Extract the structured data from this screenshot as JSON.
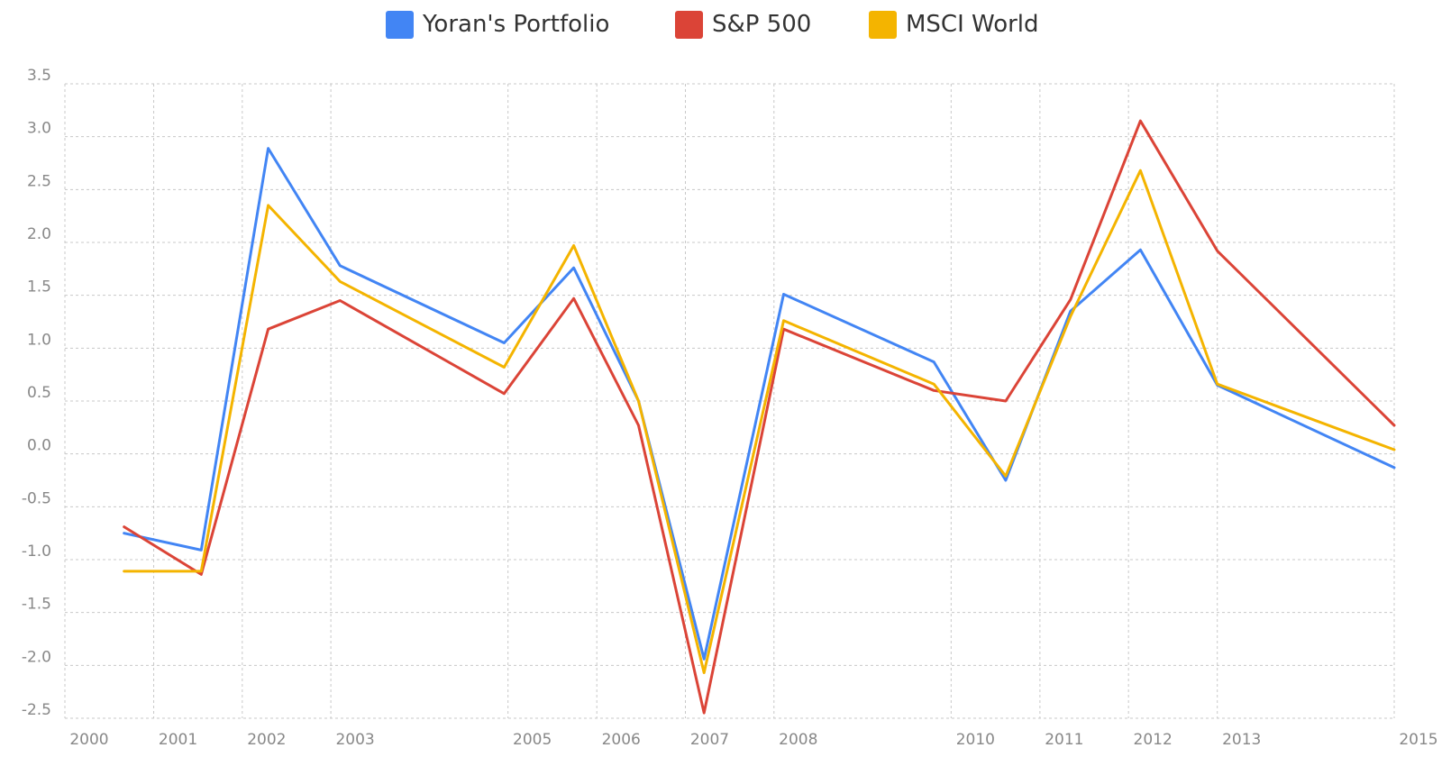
{
  "chart_data": {
    "type": "line",
    "title": "",
    "xlabel": "",
    "ylabel": "",
    "ylim": [
      -2.5,
      3.5
    ],
    "yticks": [
      "3.5",
      "3.0",
      "2.5",
      "2.0",
      "1.5",
      "1.0",
      "0.5",
      "0.0",
      "-0.5",
      "-1.0",
      "-1.5",
      "-2.0",
      "-2.5"
    ],
    "ytick_values": [
      3.5,
      3.0,
      2.5,
      2.0,
      1.5,
      1.0,
      0.5,
      0.0,
      -0.5,
      -1.0,
      -1.5,
      -2.0,
      -2.5
    ],
    "xticks": [
      "2000",
      "2001",
      "2002",
      "2003",
      "2005",
      "2006",
      "2007",
      "2008",
      "2010",
      "2011",
      "2012",
      "2013",
      "2015"
    ],
    "xtick_dates": [
      "2000-01-01",
      "2001-01-01",
      "2002-01-01",
      "2003-01-01",
      "2004-12-31",
      "2006-01-01",
      "2007-01-01",
      "2008-01-01",
      "2009-12-31",
      "2011-01-01",
      "2012-01-01",
      "2013-01-01",
      "2014-12-31"
    ],
    "x": [
      "2000-09-01",
      "2001-07-16",
      "2002-04-18",
      "2003-02-08",
      "2004-12-15",
      "2005-09-28",
      "2006-06-22",
      "2007-03-19",
      "2008-02-10",
      "2009-10-21",
      "2010-08-13",
      "2011-05-07",
      "2012-02-19",
      "2013-01-01",
      "2014-12-31"
    ],
    "series": [
      {
        "name": "Yoran's Portfolio",
        "color": "#4285f4",
        "values": [
          -0.75,
          -0.91,
          2.89,
          1.78,
          1.05,
          1.76,
          0.5,
          -1.94,
          1.51,
          0.87,
          -0.25,
          1.35,
          1.93,
          0.65,
          -0.13
        ]
      },
      {
        "name": "S&P 500",
        "color": "#db4437",
        "values": [
          -0.69,
          -1.14,
          1.18,
          1.45,
          0.57,
          1.47,
          0.27,
          -2.45,
          1.18,
          0.6,
          0.5,
          1.46,
          3.15,
          1.92,
          0.27
        ]
      },
      {
        "name": "MSCI World",
        "color": "#f4b400",
        "values": [
          -1.11,
          -1.11,
          2.35,
          1.63,
          0.82,
          1.97,
          0.5,
          -2.07,
          1.26,
          0.66,
          -0.21,
          1.3,
          2.68,
          0.66,
          0.04
        ]
      }
    ],
    "grid": true,
    "legend_position": "top"
  }
}
